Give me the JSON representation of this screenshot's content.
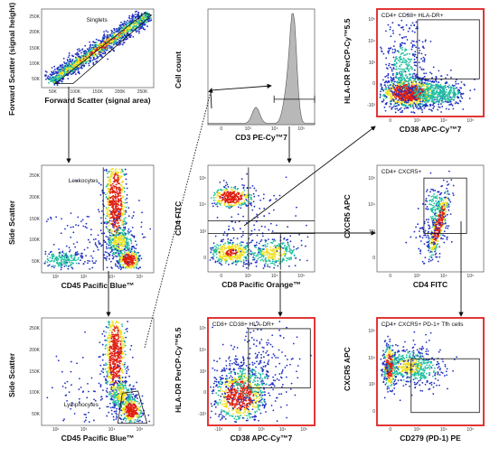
{
  "colors": {
    "highlight_border": "#e02020",
    "normal_border": "#555555",
    "density_low": "#2030c0",
    "density_mid": "#20c0a0",
    "density_high_1": "#f0e020",
    "density_high_2": "#e02010",
    "histogram_fill": "#b8b8b8",
    "gate_line": "#111111"
  },
  "panels": [
    {
      "id": "singlets",
      "x_label": "Forward Scatter (signal area)",
      "y_label": "Forward Scatter (signal height)",
      "gate_label": "Singlets",
      "x_ticks": [
        "50K",
        "100K",
        "150K",
        "200K",
        "250K"
      ],
      "y_ticks": [
        "250K",
        "200K",
        "150K",
        "100K",
        "50K"
      ],
      "highlighted": false
    },
    {
      "id": "cd3-histogram",
      "x_label": "CD3 PE-Cy™7",
      "y_label": "Cell count",
      "gate_label": "",
      "x_ticks": [
        "0",
        "10³",
        "10⁴",
        "10⁵"
      ],
      "y_ticks": [],
      "highlighted": false
    },
    {
      "id": "cd4-cd38-hladr",
      "x_label": "CD38 APC-Cy™7",
      "y_label": "HLA-DR PerCP-Cy™5.5",
      "gate_label": "CD4+ CD38+ HLA-DR+",
      "x_ticks": [
        "0",
        "10³",
        "10⁴",
        "10⁵"
      ],
      "y_ticks": [
        "10⁵",
        "10⁴",
        "10³",
        "0",
        "-10³"
      ],
      "highlighted": true
    },
    {
      "id": "leukocytes",
      "x_label": "CD45 Pacific Blue™",
      "y_label": "Side Scatter",
      "gate_label": "Leukocytes",
      "x_ticks": [
        "10²",
        "10³",
        "10⁴",
        "10⁵"
      ],
      "y_ticks": [
        "250K",
        "200K",
        "150K",
        "100K",
        "50K"
      ],
      "highlighted": false
    },
    {
      "id": "cd4-cd8",
      "x_label": "CD8 Pacific Orange™",
      "y_label": "CD4 FITC",
      "gate_label": "",
      "x_ticks": [
        "0",
        "10³",
        "10⁴",
        "10⁵"
      ],
      "y_ticks": [
        "10⁵",
        "10⁴",
        "10³",
        "0"
      ],
      "highlighted": false
    },
    {
      "id": "cd4-cxcr5",
      "x_label": "CD4 FITC",
      "y_label": "CXCR5 APC",
      "gate_label": "CD4+ CXCR5+",
      "x_ticks": [
        "0",
        "10³",
        "10⁴",
        "10⁵"
      ],
      "y_ticks": [
        "10⁵",
        "10⁴",
        "10³",
        "0"
      ],
      "highlighted": false
    },
    {
      "id": "lymphocytes",
      "x_label": "CD45 Pacific Blue™",
      "y_label": "Side Scatter",
      "gate_label": "Lymphocytes",
      "x_ticks": [
        "10²",
        "10³",
        "10⁴",
        "10⁵"
      ],
      "y_ticks": [
        "250K",
        "200K",
        "150K",
        "100K",
        "50K"
      ],
      "highlighted": false
    },
    {
      "id": "cd8-cd38-hladr",
      "x_label": "CD38 APC-Cy™7",
      "y_label": "HLA-DR PerCP-Cy™5.5",
      "gate_label": "CD8+ CD38+ HLA-DR+",
      "x_ticks": [
        "-10³",
        "0",
        "10³",
        "10⁴",
        "10⁵"
      ],
      "y_ticks": [
        "10⁵",
        "10⁴",
        "10³",
        "0",
        "-10³"
      ],
      "highlighted": true
    },
    {
      "id": "tfh",
      "x_label": "CD279 (PD-1) PE",
      "y_label": "CXCR5 APC",
      "gate_label": "CD4+ CXCR5+ PD-1+ Tfh cells",
      "x_ticks": [
        "0",
        "10³",
        "10⁴",
        "10⁵"
      ],
      "y_ticks": [
        "10⁵",
        "10⁴",
        "10³",
        "0"
      ],
      "highlighted": true
    }
  ]
}
